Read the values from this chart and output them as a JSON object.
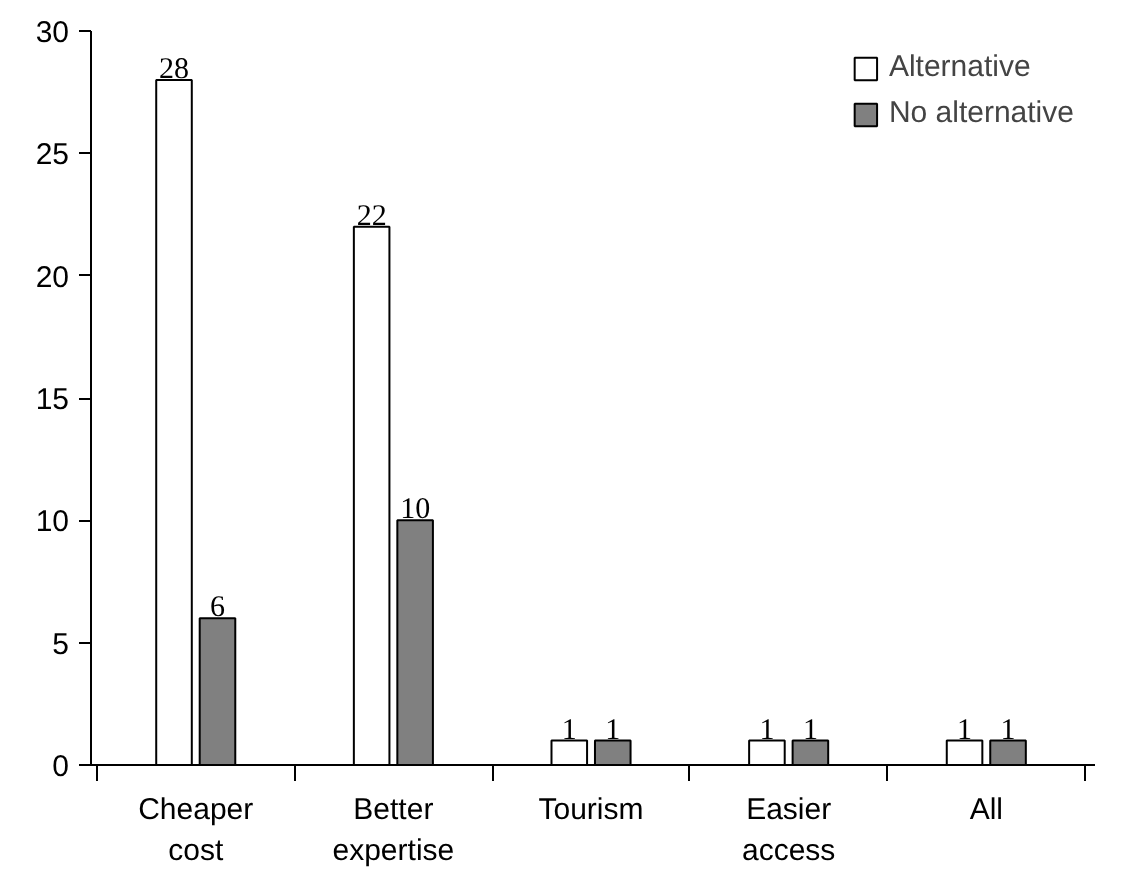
{
  "chart_data": {
    "type": "bar",
    "categories": [
      "Cheaper cost",
      "Better expertise",
      "Tourism",
      "Easier access",
      "All"
    ],
    "series": [
      {
        "name": "Alternative",
        "color": "#ffffff",
        "values": [
          28,
          22,
          1,
          1,
          1
        ]
      },
      {
        "name": "No alternative",
        "color": "#808080",
        "values": [
          6,
          10,
          1,
          1,
          1
        ]
      }
    ],
    "ylim": [
      0,
      30
    ],
    "yticks": [
      0,
      5,
      10,
      15,
      20,
      25,
      30
    ],
    "data_labels": true,
    "legend": "top right",
    "grid": false
  }
}
